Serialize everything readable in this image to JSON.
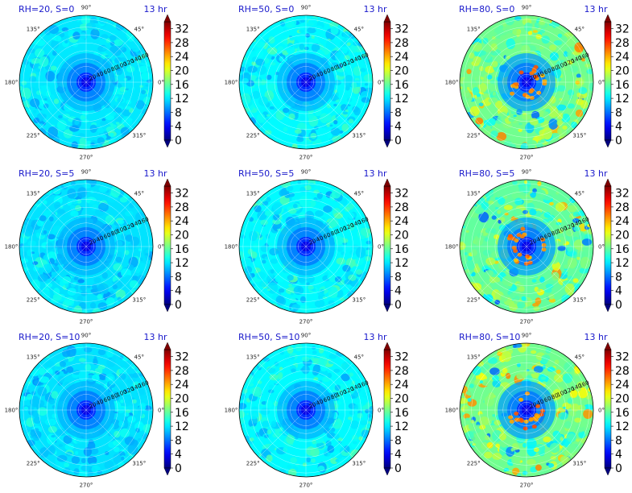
{
  "chart_data": {
    "type": "heatmap",
    "layout": "polar small multiples, 3 rows x 3 columns, each with its own colorbar",
    "colormap": "jet",
    "colorbar": {
      "range": [
        0,
        34
      ],
      "ticks": [
        "0",
        "4",
        "8",
        "12",
        "16",
        "20",
        "24",
        "28",
        "32"
      ],
      "extend": "both"
    },
    "angular_ticks": [
      "90°",
      "45°",
      "0°",
      "315°",
      "270°",
      "225°",
      "180°",
      "135°"
    ],
    "radial_ticks": [
      "20",
      "40",
      "60",
      "80",
      "100",
      "120",
      "140",
      "160"
    ],
    "radial_max": 170,
    "panels": [
      {
        "title": "RH=20, S=0",
        "time": "13 hr",
        "rh": 20,
        "s": 0,
        "level": 12.0,
        "spread": 2.0
      },
      {
        "title": "RH=50, S=0",
        "time": "13 hr",
        "rh": 50,
        "s": 0,
        "level": 12.6,
        "spread": 2.2
      },
      {
        "title": "RH=80, S=0",
        "time": "13 hr",
        "rh": 80,
        "s": 0,
        "level": 16.5,
        "spread": 3.5
      },
      {
        "title": "RH=20, S=5",
        "time": "13 hr",
        "rh": 20,
        "s": 5,
        "level": 11.8,
        "spread": 1.9
      },
      {
        "title": "RH=50, S=5",
        "time": "13 hr",
        "rh": 50,
        "s": 5,
        "level": 12.6,
        "spread": 2.2
      },
      {
        "title": "RH=80, S=5",
        "time": "13 hr",
        "rh": 80,
        "s": 5,
        "level": 16.0,
        "spread": 3.5
      },
      {
        "title": "RH=20, S=10",
        "time": "13 hr",
        "rh": 20,
        "s": 10,
        "level": 11.8,
        "spread": 1.9
      },
      {
        "title": "RH=50, S=10",
        "time": "13 hr",
        "rh": 50,
        "s": 10,
        "level": 12.6,
        "spread": 2.2
      },
      {
        "title": "RH=80, S=10",
        "time": "13 hr",
        "rh": 80,
        "s": 10,
        "level": 16.5,
        "spread": 3.6
      }
    ]
  }
}
